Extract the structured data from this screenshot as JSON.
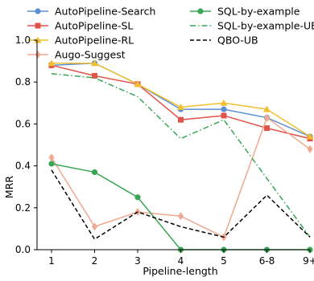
{
  "chart_data": {
    "type": "line",
    "xlabel": "Pipeline-length",
    "ylabel": "MRR",
    "categories": [
      "1",
      "2",
      "3",
      "4",
      "5",
      "6-8",
      "9+"
    ],
    "ylim": [
      0.0,
      1.0
    ],
    "yticks": [
      0.0,
      0.2,
      0.4,
      0.6,
      0.8,
      1.0
    ],
    "ytick_labels": [
      "0.0",
      "0.2",
      "0.4",
      "0.6",
      "0.8",
      "1.0"
    ],
    "grid": false,
    "legend_position": "top",
    "series": [
      {
        "name": "AutoPipeline-Search",
        "color": "#5b8fd6",
        "marker": "circle",
        "dash": "solid",
        "values": [
          0.88,
          0.89,
          0.79,
          0.67,
          0.67,
          0.63,
          0.54
        ]
      },
      {
        "name": "AutoPipeline-SL",
        "color": "#e0534a",
        "marker": "square",
        "dash": "solid",
        "values": [
          0.88,
          0.83,
          0.79,
          0.62,
          0.64,
          0.58,
          0.53
        ]
      },
      {
        "name": "AutoPipeline-RL",
        "color": "#f0c030",
        "marker": "triangle",
        "dash": "solid",
        "values": [
          0.89,
          0.89,
          0.79,
          0.68,
          0.7,
          0.67,
          0.54
        ]
      },
      {
        "name": "Augo-Suggest",
        "color": "#f0a890",
        "marker": "diamond",
        "dash": "solid",
        "values": [
          0.44,
          0.11,
          0.18,
          0.16,
          0.06,
          0.63,
          0.48
        ]
      },
      {
        "name": "SQL-by-example",
        "color": "#3aa655",
        "marker": "circle",
        "dash": "solid",
        "values": [
          0.41,
          0.37,
          0.25,
          0.0,
          0.0,
          0.0,
          0.0
        ]
      },
      {
        "name": "SQL-by-example-UB",
        "color": "#3aa655",
        "marker": "none",
        "dash": "dashdot",
        "values": [
          0.84,
          0.82,
          0.73,
          0.53,
          0.62,
          0.34,
          0.06
        ]
      },
      {
        "name": "QBO-UB",
        "color": "#000000",
        "marker": "none",
        "dash": "dashed",
        "values": [
          0.38,
          0.05,
          0.18,
          0.11,
          0.06,
          0.26,
          0.06
        ]
      }
    ]
  }
}
